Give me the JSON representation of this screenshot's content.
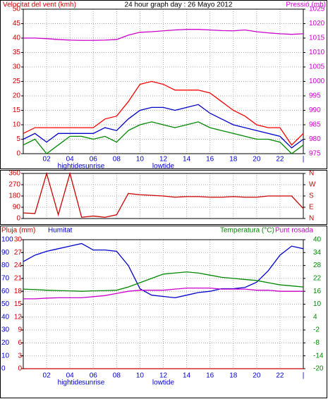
{
  "chart_data": [
    {
      "type": "line",
      "title": "24 hour graph day : 26 Mayo 2012",
      "y_label": "Velocitat del vent (kmh)",
      "x": [
        0,
        1,
        2,
        3,
        4,
        5,
        6,
        7,
        8,
        9,
        10,
        11,
        12,
        13,
        14,
        15,
        16,
        17,
        18,
        19,
        20,
        21,
        22,
        23,
        24
      ],
      "xlim": [
        0,
        24
      ],
      "xticks": [
        {
          "value": 2,
          "label": "02"
        },
        {
          "value": 4,
          "label": "04"
        },
        {
          "value": 6,
          "label": "06"
        },
        {
          "value": 8,
          "label": "08"
        },
        {
          "value": 10,
          "label": "10"
        },
        {
          "value": 12,
          "label": "12"
        },
        {
          "value": 14,
          "label": "14"
        },
        {
          "value": 16,
          "label": "16"
        },
        {
          "value": 18,
          "label": "18"
        },
        {
          "value": 20,
          "label": "20"
        },
        {
          "value": 22,
          "label": "22"
        },
        {
          "value": 24,
          "label": "|"
        }
      ],
      "annotations": [
        {
          "text": "hightide",
          "x": 4
        },
        {
          "text": "sunrise",
          "x": 6
        },
        {
          "text": "lowtide",
          "x": 12
        }
      ],
      "ylim": [
        0,
        50
      ],
      "yticks": [
        0,
        5,
        10,
        15,
        20,
        25,
        30,
        35,
        40,
        45,
        50
      ],
      "ytick_color": "#cc0000",
      "y2lim": [
        975,
        1025
      ],
      "y2ticks": [
        975,
        980,
        985,
        990,
        995,
        1000,
        1005,
        1010,
        1015,
        1020,
        1025
      ],
      "y2tick_color": "#cc00cc",
      "grid": true,
      "show_xtick_labels": true,
      "series": [
        {
          "color": "#ff0000",
          "values": [
            7,
            9,
            9,
            9,
            9,
            9,
            9,
            12,
            13,
            18,
            24,
            25,
            24,
            22,
            22,
            22,
            21,
            18,
            15,
            13,
            10,
            9,
            9,
            3,
            7
          ]
        },
        {
          "color": "#0000cc",
          "values": [
            5,
            7,
            4,
            7,
            7,
            7,
            7,
            9,
            8,
            12,
            15,
            16,
            16,
            15,
            16,
            17,
            14,
            12,
            10,
            9,
            8,
            7,
            6,
            2,
            5
          ]
        },
        {
          "color": "#008800",
          "values": [
            3,
            5,
            0,
            3,
            6,
            6,
            5,
            6,
            4,
            8,
            10,
            11,
            10,
            9,
            10,
            11,
            9,
            8,
            7,
            6,
            5,
            5,
            4,
            0,
            3
          ]
        },
        {
          "name": "Pressió (mb)",
          "color": "#cc00cc",
          "axis": "y2",
          "values": [
            1015,
            1015,
            1014.8,
            1014.5,
            1014.3,
            1014.2,
            1014.2,
            1014.3,
            1014.5,
            1016,
            1017,
            1017.2,
            1017.5,
            1017.8,
            1018,
            1018,
            1017.8,
            1017.6,
            1017.5,
            1017.8,
            1017.2,
            1016.8,
            1016.5,
            1016.3,
            1016.5
          ]
        }
      ]
    },
    {
      "type": "line",
      "x": [
        0,
        1,
        2,
        3,
        4,
        5,
        6,
        7,
        8,
        9,
        10,
        11,
        12,
        13,
        14,
        15,
        16,
        17,
        18,
        19,
        20,
        21,
        22,
        23,
        24
      ],
      "xlim": [
        0,
        24
      ],
      "xticks": [
        2,
        4,
        6,
        8,
        10,
        12,
        14,
        16,
        18,
        20,
        22
      ],
      "ylim": [
        0,
        360
      ],
      "yticks": [
        0,
        90,
        180,
        270,
        360
      ],
      "ytick_color": "#cc0000",
      "y2lim": [
        0,
        360
      ],
      "y2ticks": [
        {
          "value": 0,
          "label": "N"
        },
        {
          "value": 90,
          "label": "E"
        },
        {
          "value": 180,
          "label": "S"
        },
        {
          "value": 270,
          "label": "W"
        },
        {
          "value": 360,
          "label": "N"
        }
      ],
      "y2tick_color": "#cc0000",
      "grid": true,
      "show_xtick_labels": false,
      "series": [
        {
          "color": "#cc0000",
          "values": [
            45,
            40,
            360,
            30,
            360,
            10,
            20,
            10,
            30,
            200,
            190,
            185,
            180,
            170,
            175,
            175,
            170,
            170,
            175,
            170,
            170,
            180,
            180,
            180,
            80
          ]
        }
      ]
    },
    {
      "type": "line",
      "x": [
        0,
        1,
        2,
        3,
        4,
        5,
        6,
        7,
        8,
        9,
        10,
        11,
        12,
        13,
        14,
        15,
        16,
        17,
        18,
        19,
        20,
        21,
        22,
        23,
        24
      ],
      "xlim": [
        0,
        24
      ],
      "xticks": [
        {
          "value": 2,
          "label": "02"
        },
        {
          "value": 4,
          "label": "04"
        },
        {
          "value": 6,
          "label": "06"
        },
        {
          "value": 8,
          "label": "08"
        },
        {
          "value": 10,
          "label": "10"
        },
        {
          "value": 12,
          "label": "12"
        },
        {
          "value": 14,
          "label": "14"
        },
        {
          "value": 16,
          "label": "16"
        },
        {
          "value": 18,
          "label": "18"
        },
        {
          "value": 20,
          "label": "20"
        },
        {
          "value": 22,
          "label": "22"
        },
        {
          "value": 24,
          "label": "|"
        }
      ],
      "annotations": [
        {
          "text": "hightide",
          "x": 4
        },
        {
          "text": "sunrise",
          "x": 6
        },
        {
          "text": "lowtide",
          "x": 12
        }
      ],
      "ylim": [
        0,
        100
      ],
      "yticks": [
        0,
        10,
        20,
        30,
        40,
        50,
        60,
        70,
        80,
        90,
        100
      ],
      "ytick_color": "#0000cc",
      "y2lim": [
        -20,
        40
      ],
      "y2ticks": [
        -20,
        -14,
        -8,
        -2,
        4,
        10,
        16,
        22,
        28,
        34,
        40
      ],
      "y2tick_color": "#008800",
      "y3lim": [
        0,
        30
      ],
      "y3ticks": [
        0,
        3,
        6,
        9,
        12,
        15,
        18,
        21,
        24,
        27,
        30
      ],
      "y3tick_color": "#cc0000",
      "grid": true,
      "show_xtick_labels": true,
      "series": [
        {
          "name": "Pluja (mm)",
          "color": "#cc0000",
          "axis": "y3",
          "values": [
            0,
            0,
            0,
            0,
            0,
            0,
            0,
            0,
            0,
            0,
            0,
            0,
            0,
            0,
            0,
            0,
            0,
            0,
            0,
            0,
            0,
            0,
            0,
            0,
            0
          ]
        },
        {
          "name": "Humitat",
          "color": "#0000cc",
          "values": [
            83,
            88,
            91,
            93,
            95,
            97,
            92,
            92,
            91,
            80,
            62,
            57,
            56,
            55,
            57,
            59,
            60,
            62,
            62,
            63,
            67,
            76,
            88,
            95,
            93
          ]
        },
        {
          "name": "Temperatura (°C)",
          "color": "#008800",
          "axis": "y2",
          "values": [
            17,
            16.8,
            16.5,
            16.3,
            16.2,
            16,
            16.2,
            16.3,
            16.5,
            18,
            20,
            22,
            24,
            24.5,
            25,
            24.5,
            23.5,
            22.5,
            22,
            21.5,
            21,
            20,
            19,
            18.5,
            18
          ]
        },
        {
          "name": "Punt rosada",
          "color": "#cc00cc",
          "axis": "y2",
          "values": [
            12.5,
            12.5,
            12.8,
            13,
            13,
            13,
            13.5,
            14,
            15,
            16,
            16.5,
            16.5,
            16.5,
            17,
            17.5,
            17.5,
            17.5,
            17,
            17,
            17,
            16.5,
            16.5,
            16,
            16,
            16
          ]
        }
      ]
    }
  ]
}
